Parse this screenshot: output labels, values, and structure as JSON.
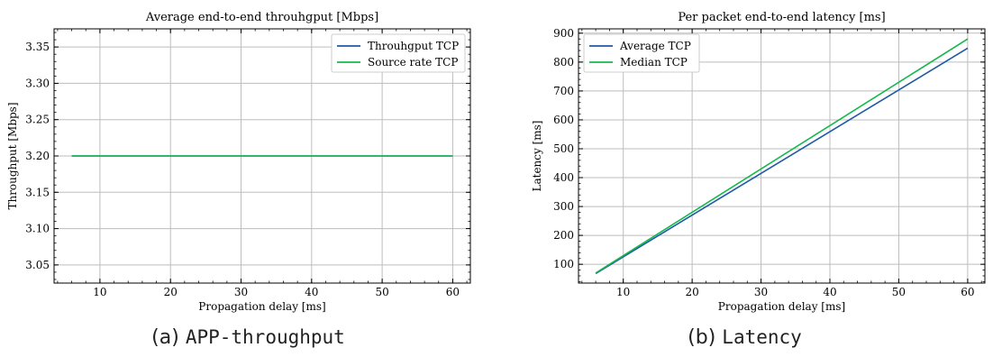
{
  "chart_data": [
    {
      "type": "line",
      "title": "Average end-to-end throuhgput [Mbps]",
      "xlabel": "Propagation delay [ms]",
      "ylabel": "Throughput [Mbps]",
      "xlim": [
        3.5,
        62.5
      ],
      "ylim": [
        3.025,
        3.375
      ],
      "xticks": [
        10,
        20,
        30,
        40,
        50,
        60
      ],
      "yticks": [
        3.05,
        3.1,
        3.15,
        3.2,
        3.25,
        3.3,
        3.35
      ],
      "ytick_labels": [
        "3.05",
        "3.10",
        "3.15",
        "3.20",
        "3.25",
        "3.30",
        "3.35"
      ],
      "grid": true,
      "legend_position": "top-right",
      "x": [
        6,
        60
      ],
      "series": [
        {
          "name": "Throuhgput TCP",
          "color": "#1f5aa6",
          "values": [
            3.2,
            3.2
          ]
        },
        {
          "name": "Source rate TCP",
          "color": "#16b84e",
          "values": [
            3.2,
            3.2
          ]
        }
      ]
    },
    {
      "type": "line",
      "title": "Per packet end-to-end latency [ms]",
      "xlabel": "Propagation delay [ms]",
      "ylabel": "Latency [ms]",
      "xlim": [
        3.5,
        62.5
      ],
      "ylim": [
        35,
        915
      ],
      "xticks": [
        10,
        20,
        30,
        40,
        50,
        60
      ],
      "yticks": [
        100,
        200,
        300,
        400,
        500,
        600,
        700,
        800,
        900
      ],
      "ytick_labels": [
        "100",
        "200",
        "300",
        "400",
        "500",
        "600",
        "700",
        "800",
        "900"
      ],
      "grid": true,
      "legend_position": "top-left",
      "x": [
        6,
        60
      ],
      "series": [
        {
          "name": "Average TCP",
          "color": "#1f5aa6",
          "values": [
            68,
            848
          ]
        },
        {
          "name": "Median TCP",
          "color": "#16b84e",
          "values": [
            70,
            880
          ]
        }
      ]
    }
  ],
  "captions": {
    "a_prefix": "(a) ",
    "a_code": "APP-throughput",
    "b_prefix": "(b) ",
    "b_code": "Latency"
  }
}
